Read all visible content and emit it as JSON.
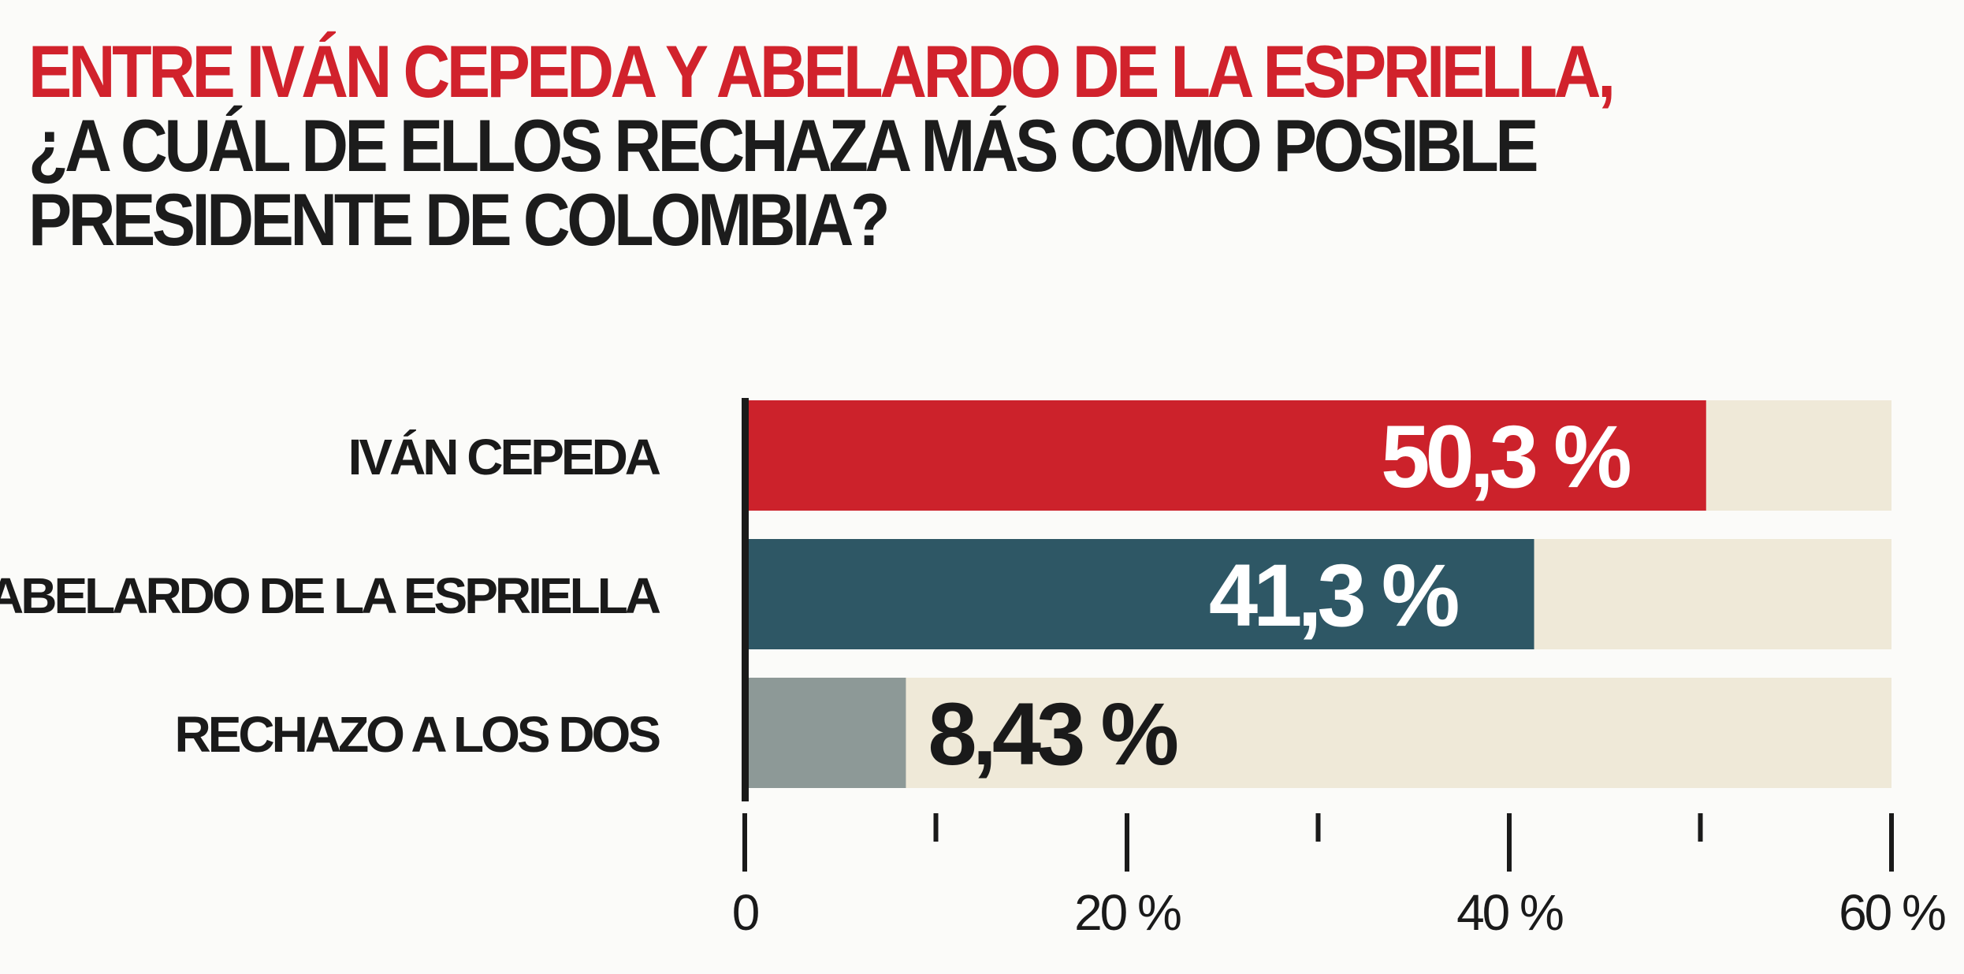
{
  "title": {
    "line1": "ENTRE IVÁN CEPEDA Y ABELARDO DE LA ESPRIELLA,",
    "line2": "¿A CUÁL DE ELLOS RECHAZA MÁS COMO POSIBLE",
    "line3": "PRESIDENTE DE COLOMBIA?"
  },
  "colors": {
    "title_accent": "#d1222c",
    "title_text": "#1c1c1c",
    "track": "#efe9d8",
    "axis": "#1a1a1a"
  },
  "chart_data": {
    "type": "bar",
    "orientation": "horizontal",
    "categories": [
      "IVÁN CEPEDA",
      "ABELARDO DE LA ESPRIELLA",
      "RECHAZO A LOS  DOS"
    ],
    "values": [
      50.3,
      41.3,
      8.43
    ],
    "value_labels": [
      "50,3 %",
      "41,3 %",
      "8,43 %"
    ],
    "bar_colors": [
      "#cc222b",
      "#2e5765",
      "#8d9997"
    ],
    "label_colors": [
      "#ffffff",
      "#ffffff",
      "#1a1a1a"
    ],
    "label_inside": [
      true,
      true,
      false
    ],
    "xlim": [
      0,
      60
    ],
    "major_ticks": [
      0,
      20,
      40,
      60
    ],
    "minor_ticks": [
      10,
      30,
      50
    ],
    "tick_labels": [
      "0",
      "20 %",
      "40 %",
      "60 %"
    ],
    "grid": false,
    "legend": "none"
  }
}
